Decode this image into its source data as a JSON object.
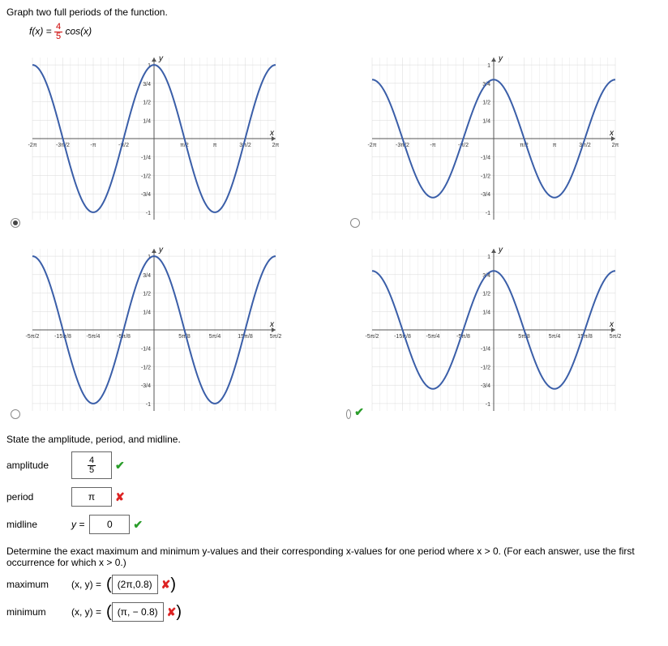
{
  "title": "Graph two full periods of the function.",
  "formula": {
    "lhs": "f(x) = ",
    "num": "4",
    "den": "5",
    "rhs": " cos(x)"
  },
  "graphs": {
    "curve_color": "#3a5ea8",
    "curve_width": 2,
    "grid_color": "#d8d8d8",
    "axis_color": "#555",
    "bg": "#ffffff",
    "tick_font": 7,
    "ylabel": "y",
    "xlabel": "x",
    "panels": [
      {
        "selected": true,
        "mark": null,
        "xlim": [
          -2,
          2
        ],
        "period": 1,
        "amplitude": 1,
        "phase": 0,
        "xticks": [
          -2,
          -1.5,
          -1,
          -0.5,
          0.5,
          1,
          1.5,
          2
        ],
        "xticklabels": [
          "-2π",
          "-3π/2",
          "-π",
          "-π/2",
          "π/2",
          "π",
          "3π/2",
          "2π"
        ],
        "yticks": [
          -1,
          -0.75,
          -0.5,
          -0.25,
          0.25,
          0.5,
          0.75,
          1
        ],
        "yticklabels": [
          "-1",
          "-3/4",
          "-1/2",
          "-1/4",
          "1/4",
          "1/2",
          "3/4",
          "1"
        ]
      },
      {
        "selected": false,
        "mark": null,
        "xlim": [
          -2,
          2
        ],
        "period": 1,
        "amplitude": 0.8,
        "phase": 0,
        "xticks": [
          -2,
          -1.5,
          -1,
          -0.5,
          0.5,
          1,
          1.5,
          2
        ],
        "xticklabels": [
          "-2π",
          "-3π/2",
          "-π",
          "-π/2",
          "π/2",
          "π",
          "3π/2",
          "2π"
        ],
        "yticks": [
          -1,
          -0.75,
          -0.5,
          -0.25,
          0.25,
          0.5,
          0.75,
          1
        ],
        "yticklabels": [
          "-1",
          "-3/4",
          "-1/2",
          "-1/4",
          "1/4",
          "1/2",
          "3/4",
          "1"
        ]
      },
      {
        "selected": false,
        "mark": null,
        "xlim": [
          -2.5,
          2.5
        ],
        "period": 1.25,
        "amplitude": 1,
        "phase": 0,
        "xticks": [
          -2.5,
          -1.875,
          -1.25,
          -0.625,
          0.625,
          1.25,
          1.875,
          2.5
        ],
        "xticklabels": [
          "-5π/2",
          "-15π/8",
          "-5π/4",
          "-5π/8",
          "5π/8",
          "5π/4",
          "15π/8",
          "5π/2"
        ],
        "yticks": [
          -1,
          -0.75,
          -0.5,
          -0.25,
          0.25,
          0.5,
          0.75,
          1
        ],
        "yticklabels": [
          "-1",
          "-3/4",
          "-1/2",
          "-1/4",
          "1/4",
          "1/2",
          "3/4",
          "1"
        ]
      },
      {
        "selected": false,
        "mark": "check",
        "xlim": [
          -2.5,
          2.5
        ],
        "period": 1.25,
        "amplitude": 0.8,
        "phase": 0,
        "xticks": [
          -2.5,
          -1.875,
          -1.25,
          -0.625,
          0.625,
          1.25,
          1.875,
          2.5
        ],
        "xticklabels": [
          "-5π/2",
          "-15π/8",
          "-5π/4",
          "-5π/8",
          "5π/8",
          "5π/4",
          "15π/8",
          "5π/2"
        ],
        "yticks": [
          -1,
          -0.75,
          -0.5,
          -0.25,
          0.25,
          0.5,
          0.75,
          1
        ],
        "yticklabels": [
          "-1",
          "-3/4",
          "-1/2",
          "-1/4",
          "1/4",
          "1/2",
          "3/4",
          "1"
        ]
      }
    ]
  },
  "state_head": "State the amplitude, period, and midline.",
  "answers": {
    "amplitude": {
      "label": "amplitude",
      "value_num": "4",
      "value_den": "5",
      "mark": "check"
    },
    "period": {
      "label": "period",
      "value": "π",
      "mark": "cross"
    },
    "midline": {
      "label": "midline",
      "prefix": "y = ",
      "value": "0",
      "mark": "check"
    }
  },
  "determine_line": "Determine the exact maximum and minimum y-values and their corresponding x-values for one period where x > 0.  (For each answer, use the first occurrence for which x > 0.)",
  "maxmin": {
    "max": {
      "label": "maximum",
      "prefix": "(x, y) = ",
      "value": "(2π,0.8)",
      "mark": "cross"
    },
    "min": {
      "label": "minimum",
      "prefix": "(x, y) = ",
      "value": "(π, − 0.8)",
      "mark": "cross"
    }
  }
}
